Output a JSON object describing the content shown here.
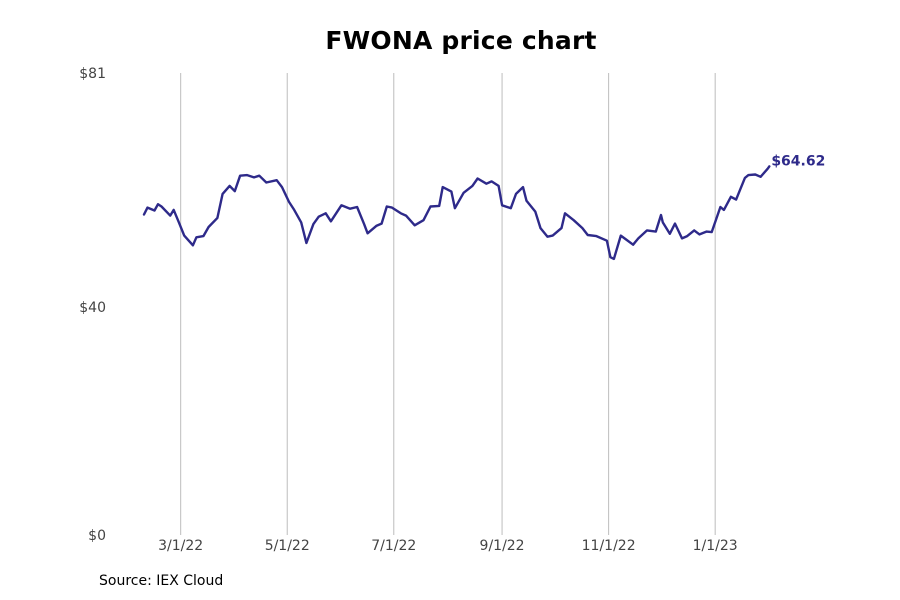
{
  "chart_data": {
    "type": "line",
    "title": "FWONA price chart",
    "source": "Source: IEX Cloud",
    "ylim": [
      0,
      81
    ],
    "y_tick_values": [
      0,
      40,
      81
    ],
    "y_tick_labels": [
      "$0",
      "$40",
      "$81"
    ],
    "x_tick_labels": [
      "3/1/22",
      "5/1/22",
      "7/1/22",
      "9/1/22",
      "11/1/22",
      "1/1/23"
    ],
    "x_tick_dates": [
      "2022-03-01",
      "2022-05-01",
      "2022-07-01",
      "2022-09-01",
      "2022-11-01",
      "2023-01-01"
    ],
    "x_start": "2022-02-08",
    "grid": "vertical lines at x ticks",
    "line_color": "#2e2a8a",
    "last_value_label": "$64.62",
    "series": [
      {
        "name": "FWONA",
        "points": [
          [
            "2022-02-08",
            56.2
          ],
          [
            "2022-02-10",
            57.4
          ],
          [
            "2022-02-14",
            56.9
          ],
          [
            "2022-02-16",
            58.0
          ],
          [
            "2022-02-18",
            57.6
          ],
          [
            "2022-02-23",
            56.0
          ],
          [
            "2022-02-25",
            57.0
          ],
          [
            "2022-02-28",
            54.8
          ],
          [
            "2022-03-03",
            52.5
          ],
          [
            "2022-03-08",
            50.8
          ],
          [
            "2022-03-10",
            52.2
          ],
          [
            "2022-03-14",
            52.4
          ],
          [
            "2022-03-17",
            54.0
          ],
          [
            "2022-03-22",
            55.6
          ],
          [
            "2022-03-25",
            59.8
          ],
          [
            "2022-03-29",
            61.2
          ],
          [
            "2022-04-01",
            60.3
          ],
          [
            "2022-04-04",
            63.0
          ],
          [
            "2022-04-08",
            63.1
          ],
          [
            "2022-04-12",
            62.7
          ],
          [
            "2022-04-15",
            63.0
          ],
          [
            "2022-04-19",
            61.8
          ],
          [
            "2022-04-25",
            62.2
          ],
          [
            "2022-04-28",
            61.0
          ],
          [
            "2022-05-02",
            58.4
          ],
          [
            "2022-05-05",
            57.0
          ],
          [
            "2022-05-09",
            54.8
          ],
          [
            "2022-05-12",
            51.2
          ],
          [
            "2022-05-16",
            54.5
          ],
          [
            "2022-05-19",
            55.8
          ],
          [
            "2022-05-23",
            56.4
          ],
          [
            "2022-05-26",
            55.0
          ],
          [
            "2022-06-01",
            57.8
          ],
          [
            "2022-06-06",
            57.2
          ],
          [
            "2022-06-10",
            57.5
          ],
          [
            "2022-06-14",
            54.5
          ],
          [
            "2022-06-16",
            52.9
          ],
          [
            "2022-06-21",
            54.2
          ],
          [
            "2022-06-24",
            54.6
          ],
          [
            "2022-06-27",
            57.6
          ],
          [
            "2022-06-30",
            57.4
          ],
          [
            "2022-07-05",
            56.4
          ],
          [
            "2022-07-08",
            56.0
          ],
          [
            "2022-07-13",
            54.3
          ],
          [
            "2022-07-18",
            55.2
          ],
          [
            "2022-07-22",
            57.6
          ],
          [
            "2022-07-27",
            57.7
          ],
          [
            "2022-07-29",
            61.0
          ],
          [
            "2022-08-03",
            60.2
          ],
          [
            "2022-08-05",
            57.3
          ],
          [
            "2022-08-10",
            60.0
          ],
          [
            "2022-08-15",
            61.2
          ],
          [
            "2022-08-18",
            62.5
          ],
          [
            "2022-08-23",
            61.6
          ],
          [
            "2022-08-26",
            62.0
          ],
          [
            "2022-08-30",
            61.2
          ],
          [
            "2022-09-01",
            57.8
          ],
          [
            "2022-09-06",
            57.3
          ],
          [
            "2022-09-09",
            59.8
          ],
          [
            "2022-09-13",
            61.0
          ],
          [
            "2022-09-15",
            58.6
          ],
          [
            "2022-09-20",
            56.7
          ],
          [
            "2022-09-23",
            53.8
          ],
          [
            "2022-09-27",
            52.3
          ],
          [
            "2022-09-30",
            52.5
          ],
          [
            "2022-10-05",
            53.8
          ],
          [
            "2022-10-07",
            56.4
          ],
          [
            "2022-10-12",
            55.2
          ],
          [
            "2022-10-17",
            53.8
          ],
          [
            "2022-10-20",
            52.6
          ],
          [
            "2022-10-25",
            52.4
          ],
          [
            "2022-10-31",
            51.6
          ],
          [
            "2022-11-02",
            48.7
          ],
          [
            "2022-11-04",
            48.4
          ],
          [
            "2022-11-08",
            52.5
          ],
          [
            "2022-11-11",
            51.8
          ],
          [
            "2022-11-15",
            50.9
          ],
          [
            "2022-11-18",
            52.0
          ],
          [
            "2022-11-23",
            53.4
          ],
          [
            "2022-11-28",
            53.2
          ],
          [
            "2022-12-01",
            56.1
          ],
          [
            "2022-12-02",
            54.8
          ],
          [
            "2022-12-06",
            52.8
          ],
          [
            "2022-12-09",
            54.6
          ],
          [
            "2022-12-13",
            52.0
          ],
          [
            "2022-12-16",
            52.4
          ],
          [
            "2022-12-20",
            53.4
          ],
          [
            "2022-12-23",
            52.7
          ],
          [
            "2022-12-27",
            53.2
          ],
          [
            "2022-12-30",
            53.1
          ],
          [
            "2023-01-04",
            57.5
          ],
          [
            "2023-01-06",
            57.0
          ],
          [
            "2023-01-10",
            59.3
          ],
          [
            "2023-01-13",
            58.8
          ],
          [
            "2023-01-18",
            62.6
          ],
          [
            "2023-01-20",
            63.1
          ],
          [
            "2023-01-24",
            63.2
          ],
          [
            "2023-01-27",
            62.8
          ],
          [
            "2023-01-31",
            64.2
          ],
          [
            "2023-02-01",
            64.62
          ]
        ]
      }
    ]
  }
}
